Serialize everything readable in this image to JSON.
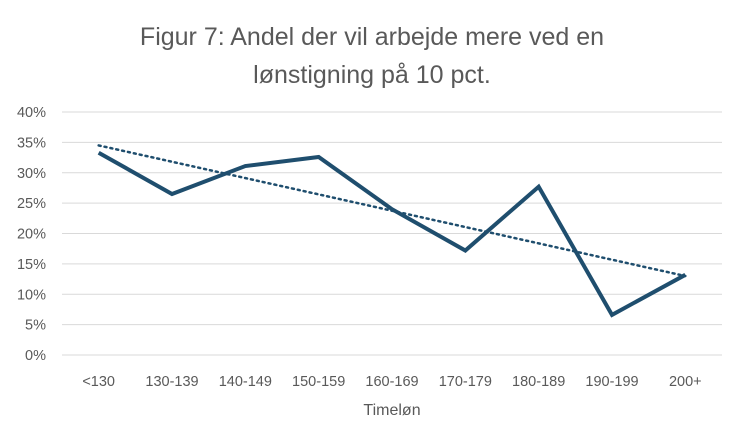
{
  "chart_data": {
    "type": "line",
    "title_lines": [
      "Figur 7: Andel der vil arbejde mere ved en",
      "lønstigning på 10 pct."
    ],
    "xlabel": "Timeløn",
    "ylabel": "",
    "categories": [
      "<130",
      "130-139",
      "140-149",
      "150-159",
      "160-169",
      "170-179",
      "180-189",
      "190-199",
      "200+"
    ],
    "series": [
      {
        "values": [
          0.333,
          0.265,
          0.311,
          0.326,
          0.24,
          0.172,
          0.277,
          0.066,
          0.132
        ],
        "color": "#1f4e6e",
        "style": "solid"
      }
    ],
    "trendline": {
      "type": "linear",
      "start": 0.345,
      "end": 0.13,
      "color": "#1f4e6e",
      "style": "dotted"
    },
    "yticks": [
      "0%",
      "5%",
      "10%",
      "15%",
      "20%",
      "25%",
      "30%",
      "35%",
      "40%"
    ],
    "ylim": [
      0,
      0.4
    ],
    "grid": true,
    "legend": "none"
  }
}
